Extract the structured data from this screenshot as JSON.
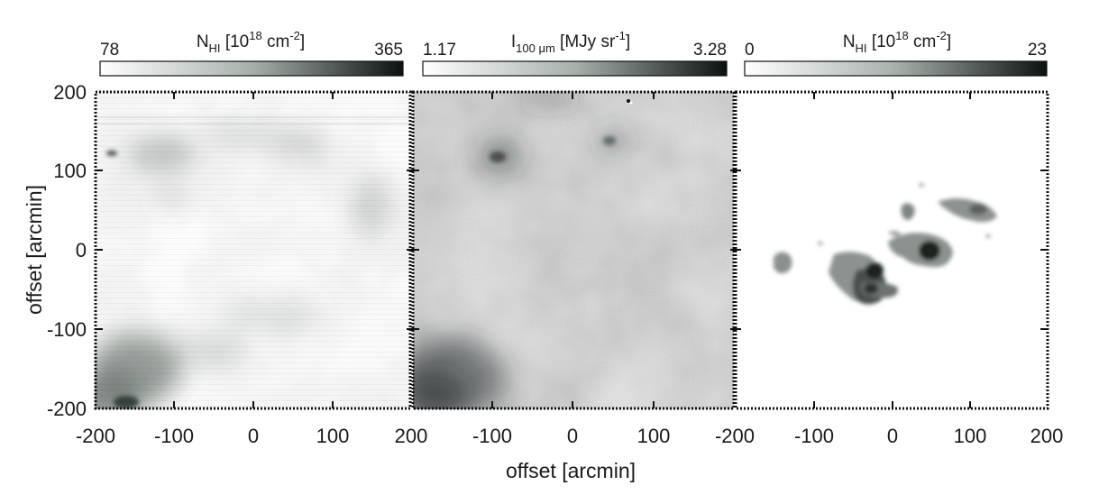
{
  "colorbars": [
    {
      "min_label": "78",
      "max_label": "365",
      "title_main": "N",
      "title_sub": "HI",
      "title_rest": " [10",
      "title_sup": "18",
      "title_unit": " cm",
      "title_unit_sup": "-2",
      "title_close": "]"
    },
    {
      "min_label": "1.17",
      "max_label": "3.28",
      "title_main": "I",
      "title_sub": "100 μm",
      "title_rest": " [MJy sr",
      "title_sup": "-1",
      "title_unit": "",
      "title_unit_sup": "",
      "title_close": "]"
    },
    {
      "min_label": "0",
      "max_label": "23",
      "title_main": "N",
      "title_sub": "HI",
      "title_rest": " [10",
      "title_sup": "18",
      "title_unit": " cm",
      "title_unit_sup": "-2",
      "title_close": "]"
    }
  ],
  "y_axis": {
    "title": "offset [arcmin]",
    "ticks": [
      "200",
      "100",
      "0",
      "-100",
      "-200"
    ]
  },
  "x_axis": {
    "title": "offset [arcmin]",
    "ticks_panel1": [
      "-200",
      "-100",
      "0",
      "100"
    ],
    "ticks_panel2": [
      "200",
      "-100",
      "0",
      "100"
    ],
    "ticks_panel3": [
      "-200",
      "-100",
      "0",
      "100",
      "200"
    ]
  },
  "panels": [
    {
      "name": "HI column density map",
      "shade": "light"
    },
    {
      "name": "100 micron dust emission map",
      "shade": "medium"
    },
    {
      "name": "HI column density clumps map",
      "shade": "white"
    }
  ]
}
